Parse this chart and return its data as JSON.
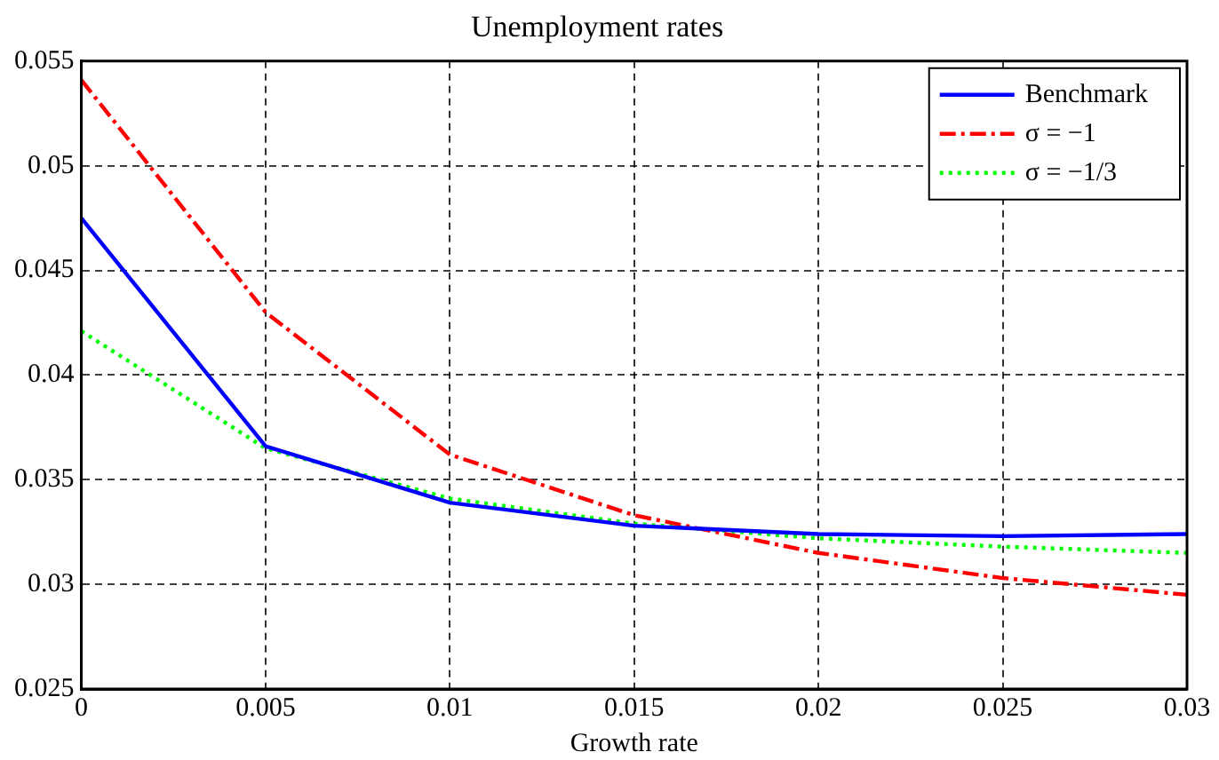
{
  "chart_data": {
    "type": "line",
    "title": "Unemployment rates",
    "xlabel": "Growth rate",
    "x": [
      0,
      0.005,
      0.01,
      0.015,
      0.02,
      0.025,
      0.03
    ],
    "series": [
      {
        "name": "Benchmark",
        "color": "#0000ff",
        "line_style": "solid",
        "values": [
          0.0475,
          0.0366,
          0.0339,
          0.0328,
          0.0324,
          0.0323,
          0.0324
        ]
      },
      {
        "name": "σ = −1",
        "color": "#ff0000",
        "line_style": "dashed",
        "values": [
          0.0541,
          0.043,
          0.0362,
          0.0333,
          0.0315,
          0.0303,
          0.0295
        ]
      },
      {
        "name": "σ = −1/3",
        "color": "#00ff00",
        "line_style": "dotted",
        "values": [
          0.0421,
          0.0365,
          0.0341,
          0.0329,
          0.0322,
          0.0318,
          0.0315
        ]
      }
    ],
    "xlim": [
      0,
      0.03
    ],
    "xticks": [
      0,
      0.005,
      0.01,
      0.015,
      0.02,
      0.025,
      0.03
    ],
    "ylim": [
      0.025,
      0.055
    ],
    "yticks": [
      0.025,
      0.03,
      0.035,
      0.04,
      0.045,
      0.05,
      0.055
    ],
    "grid": true,
    "legend": "top right",
    "marker": "none"
  }
}
